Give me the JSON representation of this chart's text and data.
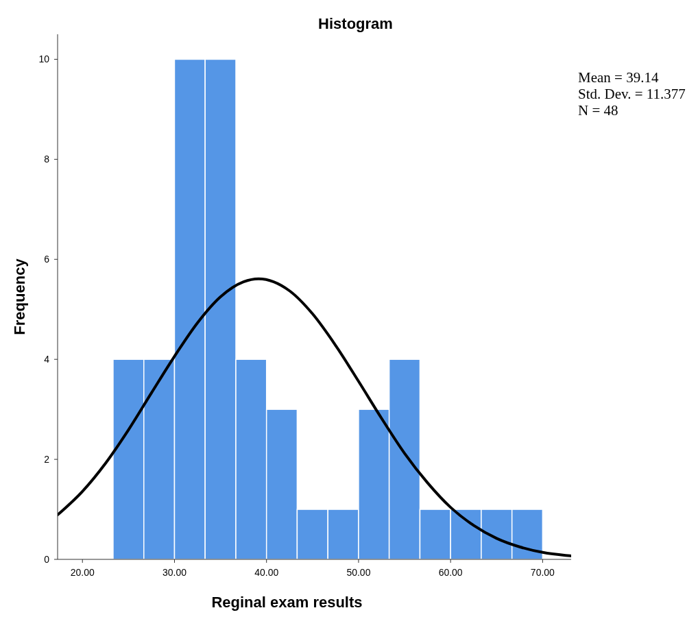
{
  "chart_data": {
    "type": "histogram",
    "title": "Histogram",
    "xlabel": "Reginal exam results",
    "ylabel": "Frequency",
    "series": [
      {
        "color": "#5596e6",
        "bins": [
          23.33,
          26.67,
          30,
          33.33,
          36.67,
          40,
          43.33,
          46.67,
          50,
          53.33,
          56.67,
          60,
          63.33,
          66.67,
          70
        ],
        "values": [
          4,
          4,
          10,
          10,
          4,
          3,
          1,
          1,
          3,
          4,
          1,
          1,
          1,
          1
        ]
      },
      {
        "type": "line",
        "color": "#000000",
        "x": [
          17.3,
          20,
          22.5,
          25,
          27.5,
          30,
          32.5,
          35,
          37.5,
          39.14,
          42.5,
          45,
          47.5,
          50,
          52.5,
          55,
          57.5,
          60,
          62.5,
          65,
          67.5,
          70,
          72.5,
          73.1
        ],
        "values": [
          0.89,
          1.36,
          1.92,
          2.59,
          3.33,
          4.06,
          4.73,
          5.25,
          5.55,
          5.61,
          5.37,
          4.91,
          4.28,
          3.56,
          2.82,
          2.12,
          1.53,
          1.04,
          0.68,
          0.42,
          0.25,
          0.14,
          0.08,
          0.07
        ]
      }
    ],
    "xlim": [
      17.3,
      73.1
    ],
    "ylim": [
      0,
      10.5
    ],
    "xticks": [
      {
        "value": 20,
        "label": "20.00"
      },
      {
        "value": 30,
        "label": "30.00"
      },
      {
        "value": 40,
        "label": "40.00"
      },
      {
        "value": 50,
        "label": "50.00"
      },
      {
        "value": 60,
        "label": "60.00"
      },
      {
        "value": 70,
        "label": "70.00"
      }
    ],
    "yticks": [
      0,
      2,
      4,
      6,
      8,
      10
    ],
    "grid": false,
    "annotations": [
      "Mean = 39.14",
      "Std. Dev. = 11.377",
      "N = 48"
    ]
  }
}
